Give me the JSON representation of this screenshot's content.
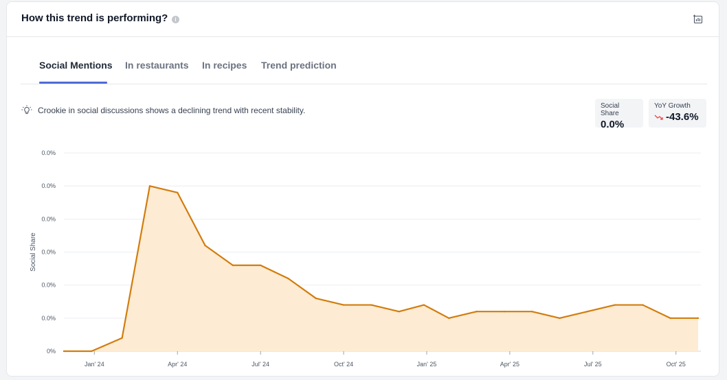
{
  "header": {
    "title": "How this trend is performing?",
    "info_icon": "info-icon",
    "download_icon": "download-chart-icon"
  },
  "tabs": [
    {
      "label": "Social Mentions",
      "active": true
    },
    {
      "label": "In restaurants",
      "active": false
    },
    {
      "label": "In recipes",
      "active": false
    },
    {
      "label": "Trend prediction",
      "active": false
    }
  ],
  "insight": {
    "icon": "lightbulb-icon",
    "text": "Crookie in social discussions shows a declining trend with recent stability."
  },
  "stats": {
    "social_share": {
      "label": "Social Share",
      "value": "0.0%"
    },
    "yoy_growth": {
      "label": "YoY Growth",
      "value": "-43.6%",
      "trend_icon": "trend-down-icon",
      "trend_color": "#ef4444"
    }
  },
  "colors": {
    "accent": "#4f6bd8",
    "line": "#d27c0c",
    "area": "#fdebd3"
  },
  "chart_data": {
    "type": "area",
    "ylabel": "Social Share",
    "y_tick_labels": [
      "0.0%",
      "0.0%",
      "0.0%",
      "0.0%",
      "0.0%",
      "0.0%",
      "0%"
    ],
    "ylim": [
      0,
      6
    ],
    "grid": true,
    "x_tick_labels": [
      "Jan' 24",
      "Apr' 24",
      "Jul' 24",
      "Oct' 24",
      "Jan' 25",
      "Apr' 25",
      "Jul' 25",
      "Oct' 25"
    ],
    "x_tick_months": [
      1,
      4,
      7,
      10,
      13,
      16,
      19,
      22
    ],
    "series": [
      {
        "x": [
          -0.1,
          0.9,
          2.0,
          3.0,
          4.0,
          5.0,
          6.0,
          7.0,
          8.0,
          9.0,
          10.0,
          11.0,
          12.0,
          12.9,
          13.8,
          14.8,
          15.8,
          16.8,
          17.8,
          18.8,
          19.8,
          20.8,
          21.8,
          22.8
        ],
        "values": [
          0,
          0,
          0.4,
          5.0,
          4.8,
          3.2,
          2.6,
          2.6,
          2.2,
          1.6,
          1.4,
          1.4,
          1.2,
          1.4,
          1.0,
          1.2,
          1.2,
          1.2,
          1.0,
          1.2,
          1.4,
          1.4,
          1.0,
          1.0
        ]
      }
    ]
  }
}
